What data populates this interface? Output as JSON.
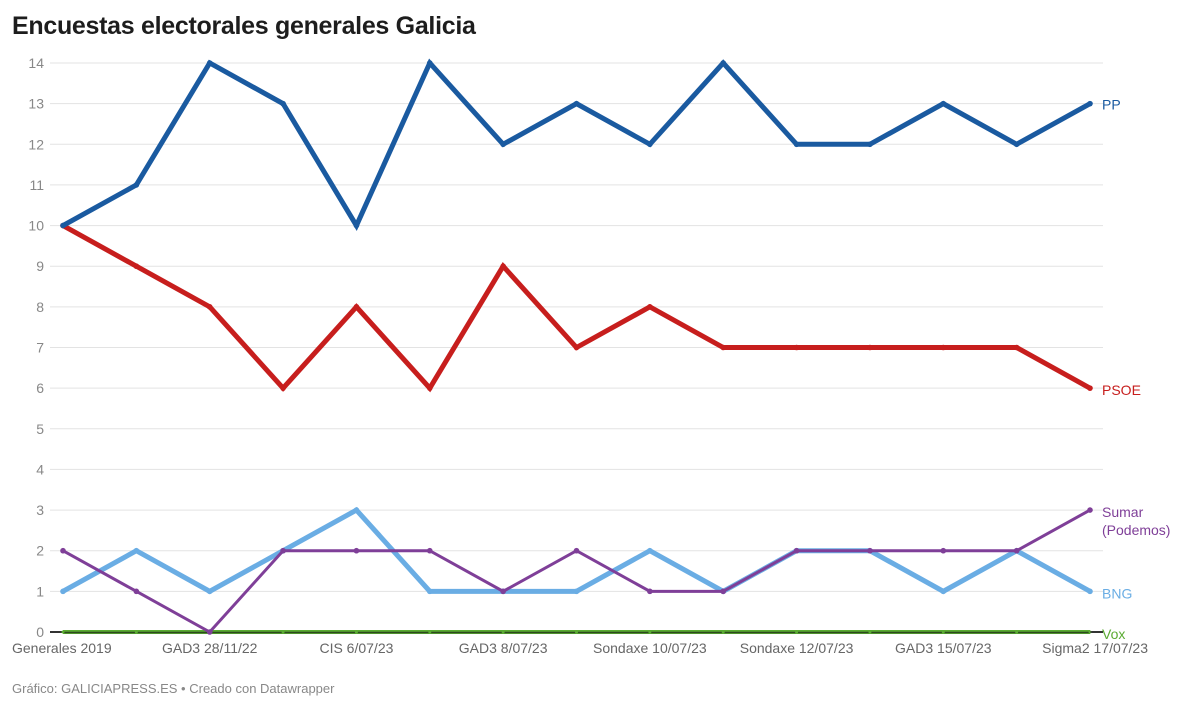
{
  "chart_data": {
    "type": "line",
    "title": "Encuestas electorales generales Galicia",
    "footer": "Gráfico: GALICIAPRESS.ES • Creado con Datawrapper",
    "categories": [
      "Generales 2019",
      "",
      "GAD3 28/11/22",
      "",
      "CIS 6/07/23",
      "",
      "GAD3 8/07/23",
      "",
      "Sondaxe 10/07/23",
      "",
      "Sondaxe 12/07/23",
      "",
      "GAD3 15/07/23",
      "",
      "Sigma2 17/07/23"
    ],
    "ylim": [
      0,
      14
    ],
    "yticks": [
      0,
      1,
      2,
      3,
      4,
      5,
      6,
      7,
      8,
      9,
      10,
      11,
      12,
      13,
      14
    ],
    "grid": true,
    "legend": "direct labels at right end of lines",
    "series": [
      {
        "name": "PP",
        "color": "#1a5aa0",
        "values": [
          10,
          11,
          14,
          13,
          10,
          14,
          12,
          13,
          12,
          14,
          12,
          12,
          13,
          12,
          13
        ]
      },
      {
        "name": "PSOE",
        "color": "#c71e1d",
        "values": [
          10,
          9,
          8,
          6,
          8,
          6,
          9,
          7,
          8,
          7,
          7,
          7,
          7,
          7,
          6
        ]
      },
      {
        "name": "BNG",
        "color": "#6aade4",
        "values": [
          1,
          2,
          1,
          2,
          3,
          1,
          1,
          1,
          2,
          1,
          2,
          2,
          1,
          2,
          1
        ]
      },
      {
        "name": "Sumar (Podemos)",
        "color": "#7f3f98",
        "values": [
          2,
          1,
          0,
          2,
          2,
          2,
          1,
          2,
          1,
          1,
          2,
          2,
          2,
          2,
          3
        ]
      },
      {
        "name": "Vox",
        "color": "#5aab32",
        "values": [
          0,
          0,
          0,
          0,
          0,
          0,
          0,
          0,
          0,
          0,
          0,
          0,
          0,
          0,
          0
        ]
      }
    ]
  }
}
